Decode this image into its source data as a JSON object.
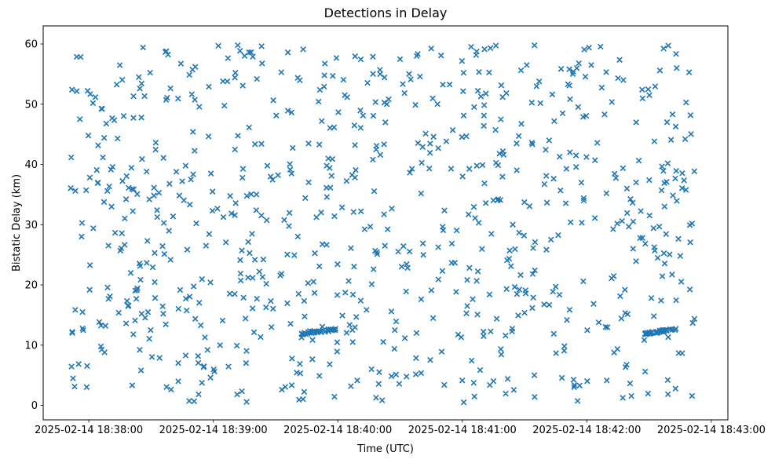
{
  "figure": {
    "background_color": "#ffffff"
  },
  "chart_data": {
    "type": "scatter",
    "title": "Detections in Delay",
    "xlabel": "Time (UTC)",
    "ylabel": "Bistatic Delay (km)",
    "legend": "none",
    "grid": false,
    "marker": "x",
    "marker_color": "#1f77b4",
    "marker_size_px": 7,
    "axis_color": "#000000",
    "x_axis": {
      "tick_labels": [
        "2025-02-14 18:38:00",
        "2025-02-14 18:39:00",
        "2025-02-14 18:40:00",
        "2025-02-14 18:41:00",
        "2025-02-14 18:42:00",
        "2025-02-14 18:43:00"
      ],
      "tick_offsets_seconds": [
        0,
        60,
        120,
        180,
        240,
        300
      ],
      "xlim_seconds": [
        -22,
        308
      ],
      "reference_time": "2025-02-14 18:38:00"
    },
    "y_axis": {
      "ticks": [
        0,
        10,
        20,
        30,
        40,
        50,
        60
      ],
      "ylim": [
        -2.4,
        63
      ]
    },
    "points_summary": {
      "total_points_estimate": 872,
      "distribution": "dense uniform random scatter of x-markers over the full time window and 0.5-60 km delay range, plus two short dense horizontal tracks at ~12 km delay",
      "background": {
        "n": 800,
        "t_seconds_range": [
          -9,
          292
        ],
        "y_range": [
          0.5,
          59.8
        ],
        "seed": 20250214
      },
      "tracks": [
        {
          "name": "dense-track-1",
          "t_seconds_range": [
            102,
            119
          ],
          "time_span": "18:39:42 - 18:39:59",
          "y_start": 11.9,
          "y_end": 12.6,
          "n": 36,
          "y_jitter": 0.18
        },
        {
          "name": "dense-track-2",
          "t_seconds_range": [
            267,
            283
          ],
          "time_span": "18:42:27 - 18:42:43",
          "y_start": 11.9,
          "y_end": 12.6,
          "n": 36,
          "y_jitter": 0.18
        }
      ]
    }
  }
}
